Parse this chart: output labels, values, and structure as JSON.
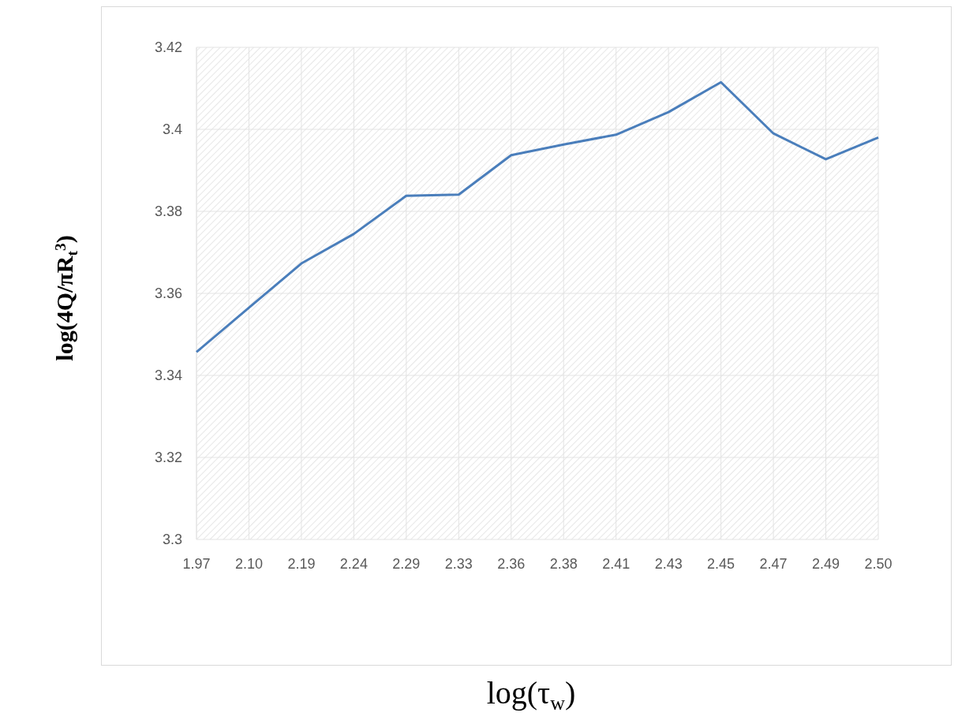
{
  "chart_data": {
    "type": "line",
    "xlabel": "log(τ$_{w}$)",
    "ylabel": "log(4Q/πR$_{t}$$^{3}$)",
    "categories": [
      "1.97",
      "2.10",
      "2.19",
      "2.24",
      "2.29",
      "2.33",
      "2.36",
      "2.38",
      "2.41",
      "2.43",
      "2.45",
      "2.47",
      "2.49",
      "2.50"
    ],
    "series": [
      {
        "color": "#4a7ebb",
        "values": [
          3.3457,
          3.3565,
          3.3673,
          3.3745,
          3.3838,
          3.3841,
          3.3937,
          3.3963,
          3.3987,
          3.4042,
          3.4115,
          3.399,
          3.3927,
          3.398
        ]
      }
    ],
    "ylim": [
      3.3,
      3.42
    ],
    "yticks": [
      {
        "value": 3.3,
        "label": "3.3"
      },
      3.32,
      3.34,
      3.36,
      3.38,
      {
        "value": 3.4,
        "label": "3.4"
      },
      3.42
    ],
    "grid": true,
    "legend": false,
    "marker": "none",
    "line_style": "solid"
  }
}
